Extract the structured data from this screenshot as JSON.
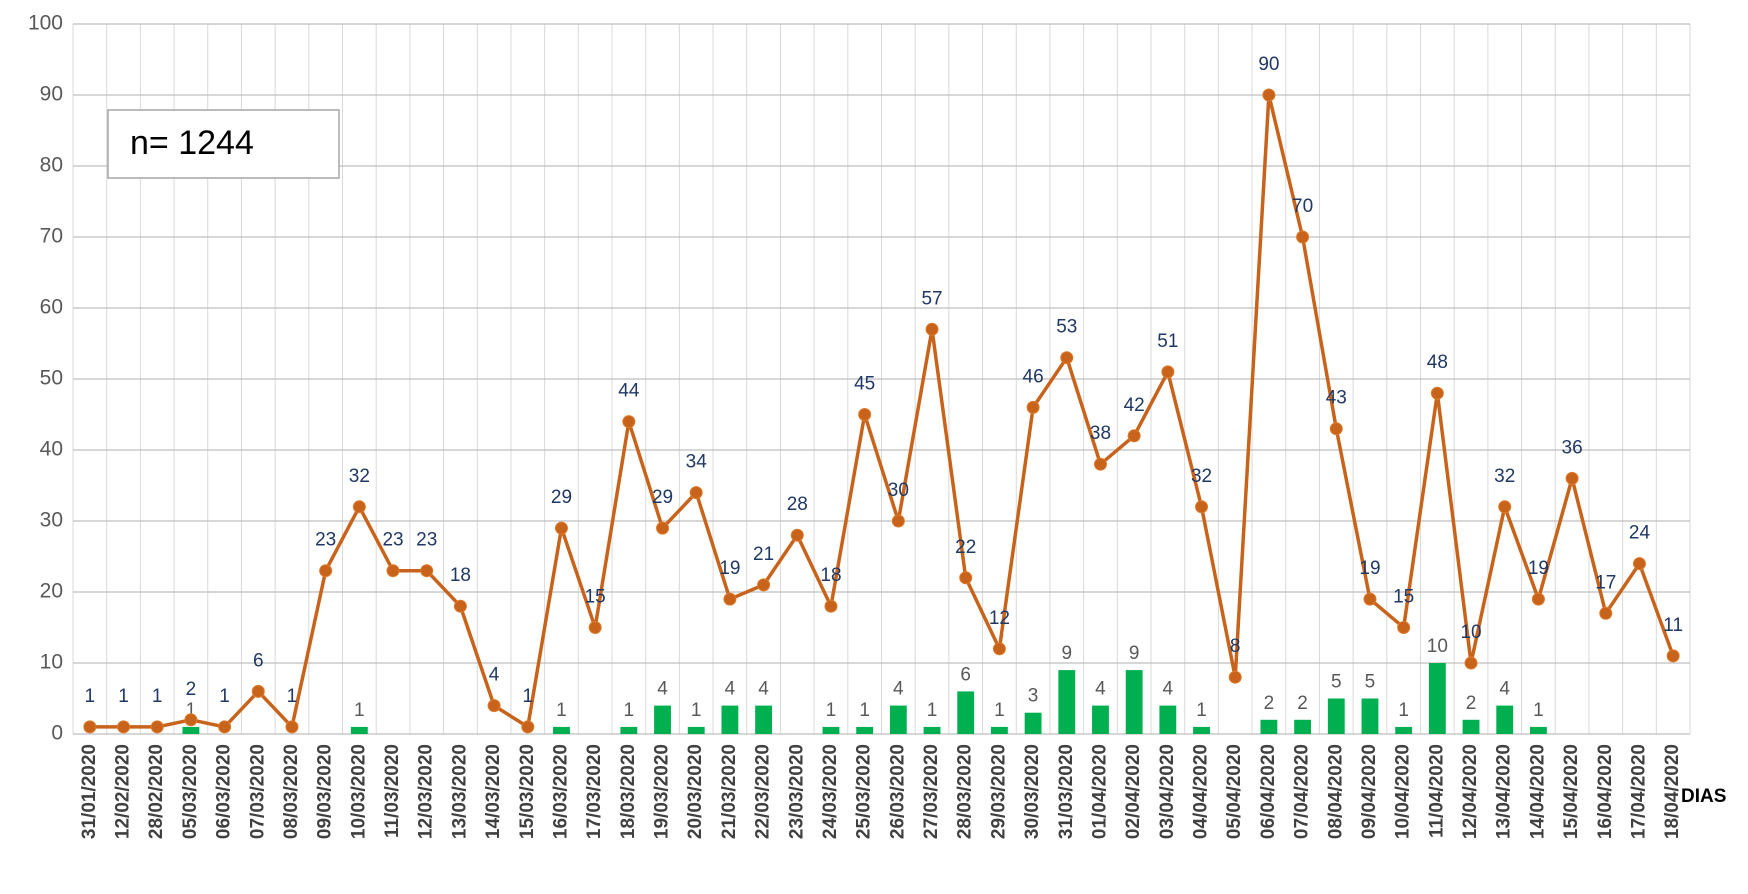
{
  "chart_data": {
    "type": "bar-line",
    "categories": [
      "31/01/2020",
      "12/02/2020",
      "28/02/2020",
      "05/03/2020",
      "06/03/2020",
      "07/03/2020",
      "08/03/2020",
      "09/03/2020",
      "10/03/2020",
      "11/03/2020",
      "12/03/2020",
      "13/03/2020",
      "14/03/2020",
      "15/03/2020",
      "16/03/2020",
      "17/03/2020",
      "18/03/2020",
      "19/03/2020",
      "20/03/2020",
      "21/03/2020",
      "22/03/2020",
      "23/03/2020",
      "24/03/2020",
      "25/03/2020",
      "26/03/2020",
      "27/03/2020",
      "28/03/2020",
      "29/03/2020",
      "30/03/2020",
      "31/03/2020",
      "01/04/2020",
      "02/04/2020",
      "03/04/2020",
      "04/04/2020",
      "05/04/2020",
      "06/04/2020",
      "07/04/2020",
      "08/04/2020",
      "09/04/2020",
      "10/04/2020",
      "11/04/2020",
      "12/04/2020",
      "13/04/2020",
      "14/04/2020",
      "15/04/2020",
      "16/04/2020",
      "17/04/2020",
      "18/04/2020"
    ],
    "series": [
      {
        "type": "bar",
        "color": "#00b050",
        "values": [
          null,
          null,
          null,
          1,
          null,
          null,
          null,
          null,
          1,
          null,
          null,
          null,
          null,
          null,
          1,
          null,
          1,
          4,
          1,
          4,
          4,
          null,
          1,
          1,
          4,
          1,
          6,
          1,
          3,
          9,
          4,
          9,
          4,
          1,
          null,
          2,
          2,
          5,
          5,
          1,
          10,
          2,
          4,
          1,
          null,
          null,
          null,
          null
        ]
      },
      {
        "type": "line",
        "color": "#c8631c",
        "values": [
          1,
          1,
          1,
          2,
          1,
          6,
          1,
          23,
          32,
          23,
          23,
          18,
          4,
          1,
          29,
          15,
          44,
          29,
          34,
          19,
          21,
          28,
          18,
          45,
          30,
          57,
          22,
          12,
          46,
          53,
          38,
          42,
          51,
          32,
          8,
          90,
          70,
          43,
          19,
          15,
          48,
          10,
          32,
          19,
          36,
          17,
          24,
          11
        ]
      }
    ],
    "ylim": [
      0,
      100
    ],
    "yticks": [
      0,
      10,
      20,
      30,
      40,
      50,
      60,
      70,
      80,
      90,
      100
    ],
    "grid": true,
    "x_label": "DIAS",
    "annotation": "n= 1244"
  }
}
